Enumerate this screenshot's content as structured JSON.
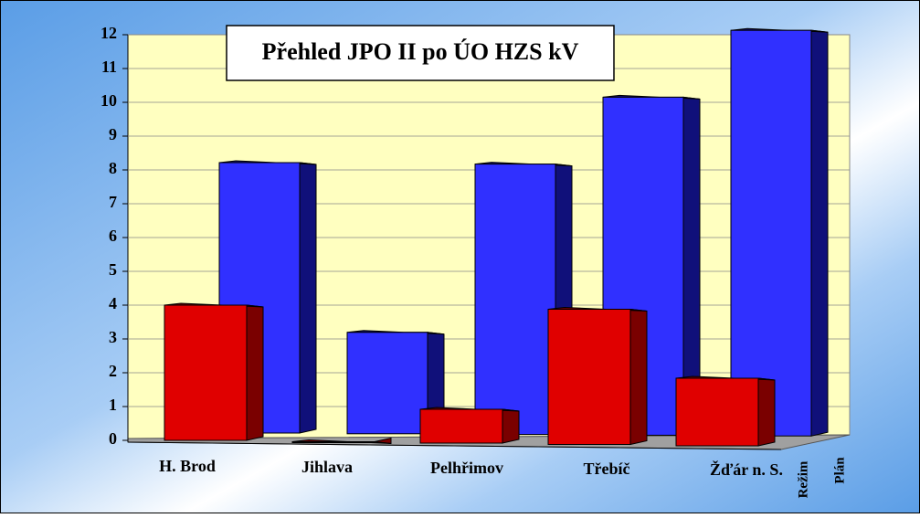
{
  "chart_data": {
    "type": "bar3d",
    "title": "Přehled JPO II po ÚO HZS kV",
    "categories": [
      "H. Brod",
      "Jihlava",
      "Pelhřimov",
      "Třebíč",
      "Žďár n. S."
    ],
    "series": [
      {
        "name": "Režim",
        "color": "#e00000",
        "values": [
          4,
          0,
          1,
          4,
          2
        ]
      },
      {
        "name": "Plán",
        "color": "#3030ff",
        "values": [
          8,
          3,
          8,
          10,
          12
        ]
      }
    ],
    "ylim": [
      0,
      12
    ],
    "yticks": [
      0,
      1,
      2,
      3,
      4,
      5,
      6,
      7,
      8,
      9,
      10,
      11,
      12
    ],
    "grid": true
  }
}
